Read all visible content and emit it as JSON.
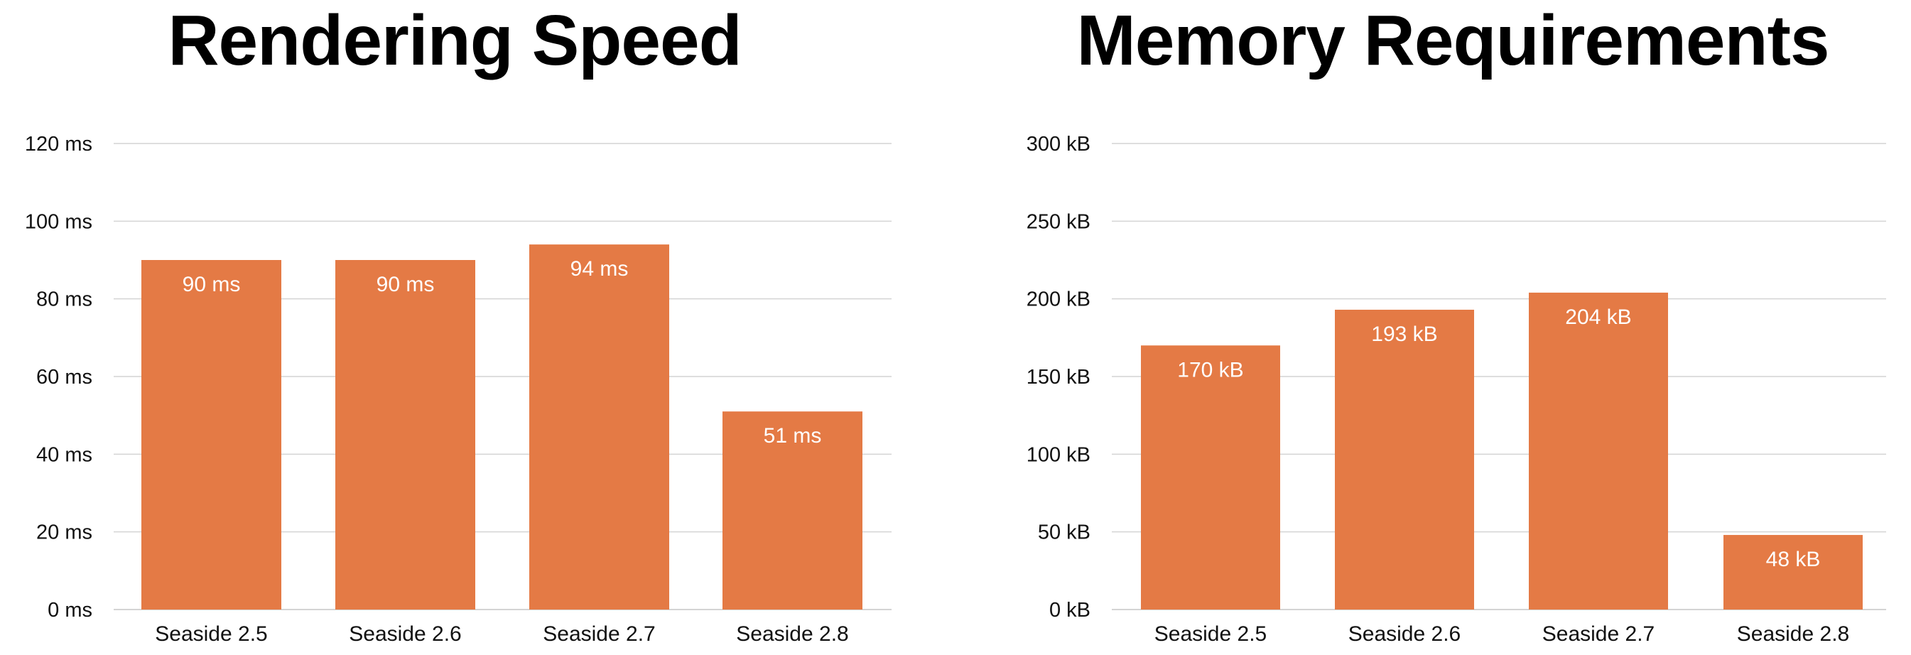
{
  "chart_data": [
    {
      "type": "bar",
      "title": "Rendering Speed",
      "xlabel": "",
      "ylabel": "",
      "categories": [
        "Seaside 2.5",
        "Seaside 2.6",
        "Seaside 2.7",
        "Seaside 2.8"
      ],
      "values": [
        90,
        90,
        94,
        51
      ],
      "data_labels": [
        "90 ms",
        "90 ms",
        "94 ms",
        "51 ms"
      ],
      "ylim": [
        0,
        120
      ],
      "yticks": [
        0,
        20,
        40,
        60,
        80,
        100,
        120
      ],
      "ytick_labels": [
        "0 ms",
        "20 ms",
        "40 ms",
        "60 ms",
        "80 ms",
        "100 ms",
        "120 ms"
      ],
      "grid": true,
      "legend": "none",
      "bar_color": "#E47A45",
      "grid_color": "#D4D4D4"
    },
    {
      "type": "bar",
      "title": "Memory Requirements",
      "xlabel": "",
      "ylabel": "",
      "categories": [
        "Seaside 2.5",
        "Seaside 2.6",
        "Seaside 2.7",
        "Seaside 2.8"
      ],
      "values": [
        170,
        193,
        204,
        48
      ],
      "data_labels": [
        "170 kB",
        "193 kB",
        "204 kB",
        "48 kB"
      ],
      "ylim": [
        0,
        300
      ],
      "yticks": [
        0,
        50,
        100,
        150,
        200,
        250,
        300
      ],
      "ytick_labels": [
        "0 kB",
        "50 kB",
        "100 kB",
        "150 kB",
        "200 kB",
        "250 kB",
        "300 kB"
      ],
      "grid": true,
      "legend": "none",
      "bar_color": "#E47A45",
      "grid_color": "#D4D4D4"
    }
  ]
}
